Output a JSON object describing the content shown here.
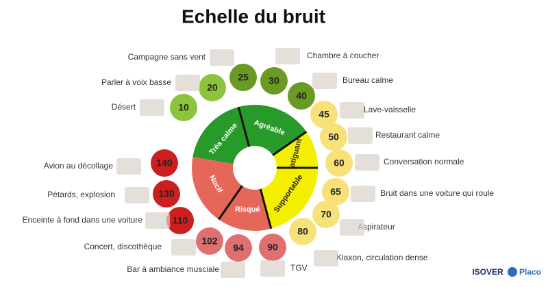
{
  "title": "Echelle du bruit",
  "zones": [
    {
      "label": "Très calme"
    },
    {
      "label": "Agréable"
    },
    {
      "label": "Fatiguant"
    },
    {
      "label": "Supportable"
    },
    {
      "label": "Risqué"
    },
    {
      "label": "Nocif"
    }
  ],
  "levels": [
    {
      "value": 10,
      "label": "Désert"
    },
    {
      "value": 20,
      "label": "Parler à voix basse"
    },
    {
      "value": 25,
      "label": "Campagne sans vent"
    },
    {
      "value": 30,
      "label": "Chambre à coucher"
    },
    {
      "value": 40,
      "label": "Bureau calme"
    },
    {
      "value": 45,
      "label": "Lave-vaisselle"
    },
    {
      "value": 50,
      "label": "Restaurant calme"
    },
    {
      "value": 60,
      "label": "Conversation normale"
    },
    {
      "value": 65,
      "label": "Bruit dans une voiture qui roule"
    },
    {
      "value": 70,
      "label": "Aspirateur"
    },
    {
      "value": 80,
      "label": "Klaxon, circulation dense"
    },
    {
      "value": 90,
      "label": "TGV"
    },
    {
      "value": 94,
      "label": "Bar à ambiance musciale"
    },
    {
      "value": 102,
      "label": "Concert, discothèque"
    },
    {
      "value": 110,
      "label": "Enceinte à fond dans une voiture"
    },
    {
      "value": 130,
      "label": "Pétards, explosion"
    },
    {
      "value": 140,
      "label": "Avion au décollage"
    }
  ],
  "logos": [
    "ISOVER",
    "Placo"
  ]
}
